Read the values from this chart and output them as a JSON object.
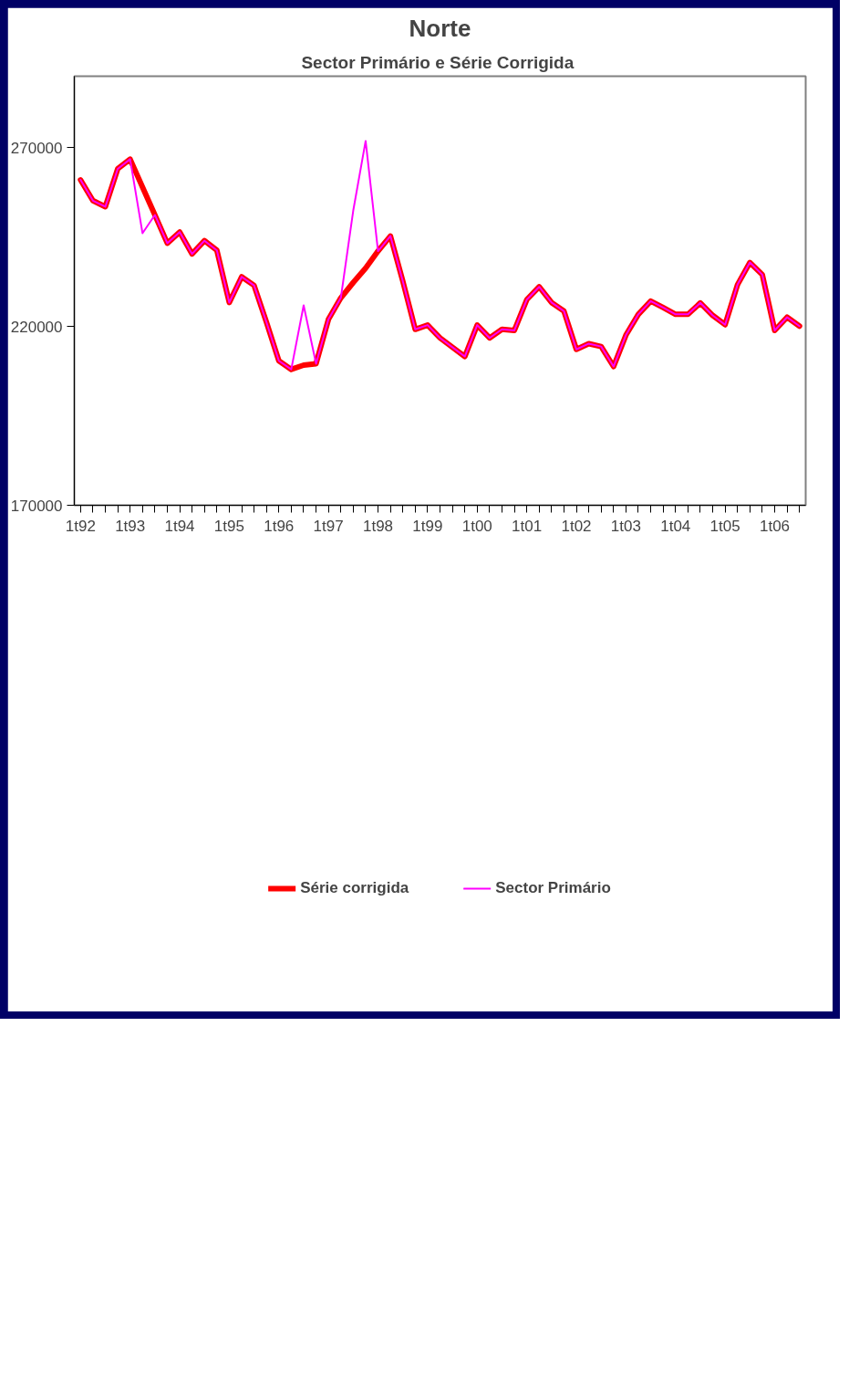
{
  "chart_data": {
    "type": "line",
    "title": "Norte",
    "subtitle": "Sector Primário  e Série Corrigida",
    "categories": [
      "1t92",
      null,
      null,
      null,
      "1t93",
      null,
      null,
      null,
      "1t94",
      null,
      null,
      null,
      "1t95",
      null,
      null,
      null,
      "1t96",
      null,
      null,
      null,
      "1t97",
      null,
      null,
      null,
      "1t98",
      null,
      null,
      null,
      "1t99",
      null,
      null,
      null,
      "1t00",
      null,
      null,
      null,
      "1t01",
      null,
      null,
      null,
      "1t02",
      null,
      null,
      null,
      "1t03",
      null,
      null,
      null,
      "1t04",
      null,
      null,
      null,
      "1t05",
      null,
      null,
      null,
      "1t06",
      null,
      null
    ],
    "series": [
      {
        "name": "Série corrigida",
        "color": "#ff0000",
        "values": [
          261000,
          255200,
          253500,
          264100,
          266800,
          259000,
          251200,
          243300,
          246400,
          240300,
          244000,
          241300,
          226700,
          233900,
          231500,
          221200,
          210400,
          208000,
          209200,
          209600,
          222000,
          228000,
          232300,
          236300,
          241100,
          245300,
          232700,
          219200,
          220400,
          216800,
          214200,
          211600,
          220400,
          216800,
          219200,
          218900,
          227500,
          231100,
          226700,
          224300,
          213600,
          215200,
          214400,
          208800,
          217600,
          223400,
          227100,
          225300,
          223400,
          223400,
          226600,
          223100,
          220500,
          231700,
          237900,
          234500,
          218900,
          222600,
          220100
        ]
      },
      {
        "name": "Sector Primário",
        "color": "#ff00ff",
        "values": [
          261000,
          255200,
          253500,
          264100,
          266800,
          246100,
          251200,
          243300,
          246400,
          240300,
          244000,
          241300,
          226700,
          233900,
          231500,
          221200,
          210400,
          208000,
          225900,
          209600,
          222000,
          228000,
          252400,
          271900,
          241100,
          245300,
          232700,
          219200,
          220400,
          216800,
          214200,
          211600,
          220400,
          216800,
          219200,
          218900,
          227500,
          231100,
          226700,
          224300,
          213600,
          215200,
          214400,
          208800,
          217600,
          223400,
          227100,
          225300,
          223400,
          223400,
          226600,
          223100,
          220500,
          231700,
          237900,
          234500,
          218900,
          222600,
          220100
        ]
      }
    ],
    "ylim": [
      170000,
      290000
    ],
    "yticks": [
      170000,
      220000,
      270000
    ],
    "legend": "bottom"
  }
}
